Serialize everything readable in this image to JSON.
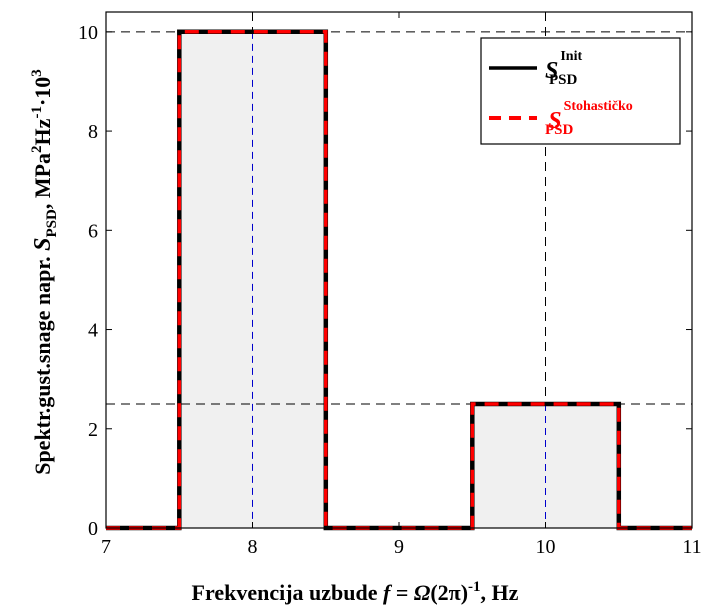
{
  "chart_data": {
    "type": "line",
    "xlim": [
      7,
      11
    ],
    "ylim": [
      0,
      10.4
    ],
    "xticks": [
      7,
      8,
      9,
      10,
      11
    ],
    "yticks": [
      0,
      2,
      4,
      6,
      8,
      10
    ],
    "xlabel": {
      "prefix": "Frekvencija uzbude ",
      "f": "f",
      "eq": " = ",
      "omega": "Ω",
      "paren": "(2π)",
      "exp": "-1",
      "suffix": ", Hz"
    },
    "ylabel": {
      "prefix": "Spektr.gust.snage napr.  ",
      "S": "S",
      "sub": "PSD",
      "unit_a": ", MPa",
      "sup_a": "2",
      "unit_b": "Hz",
      "sup_b": "-1",
      "unit_c": "·10",
      "sup_c": "3"
    },
    "grid": false,
    "legend_position": "top-right",
    "series": [
      {
        "name": "Init",
        "legend_main": "S",
        "legend_sup": "Init",
        "legend_sub": "PSD",
        "color": "#000000",
        "style": "solid",
        "x": [
          7,
          7.5,
          7.5,
          8.5,
          8.5,
          9.5,
          9.5,
          10.5,
          10.5,
          11
        ],
        "y": [
          0,
          0,
          10,
          10,
          0,
          0,
          2.5,
          2.5,
          0,
          0
        ]
      },
      {
        "name": "Stohastičko",
        "legend_main": "S",
        "legend_sup": "Stohastičko",
        "legend_sub": "PSD",
        "color": "#ff0000",
        "style": "dashed",
        "x": [
          7,
          7.5,
          7.5,
          8.5,
          8.5,
          9.5,
          9.5,
          10.5,
          10.5,
          11
        ],
        "y": [
          0,
          0,
          10,
          10,
          0,
          0,
          2.5,
          2.5,
          0,
          0
        ]
      }
    ],
    "shaded_bands": [
      {
        "x": [
          7.5,
          8.5
        ],
        "y_top": 10,
        "color": "#f0f0f0"
      },
      {
        "x": [
          9.5,
          10.5
        ],
        "y_top": 2.5,
        "color": "#f0f0f0"
      }
    ],
    "reference_lines": {
      "horizontal": [
        10,
        2.5
      ],
      "vertical_black": [
        8,
        10
      ],
      "vertical_blue": [
        8,
        10
      ],
      "color_black": "#000000",
      "color_blue": "#0000cc"
    }
  }
}
